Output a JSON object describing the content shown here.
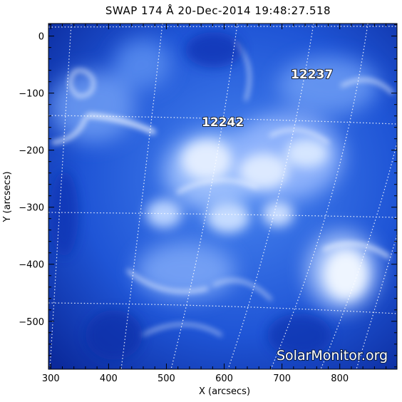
{
  "title": "SWAP 174 Å 20-Dec-2014 19:48:27.518",
  "x_axis": {
    "label": "X (arcsecs)",
    "ticks": [
      "300",
      "400",
      "500",
      "600",
      "700",
      "800"
    ],
    "tick_values": [
      300,
      400,
      500,
      600,
      700,
      800
    ]
  },
  "y_axis": {
    "label": "Y (arcsecs)",
    "ticks": [
      "0",
      "−100",
      "−200",
      "−300",
      "−400",
      "−500"
    ],
    "tick_values": [
      0,
      -100,
      -200,
      -300,
      -400,
      -500
    ]
  },
  "regions": [
    {
      "label": "12237",
      "x": 751,
      "y": -70
    },
    {
      "label": "12242",
      "x": 598,
      "y": -155
    }
  ],
  "watermark": "SolarMonitor.org",
  "colors": {
    "background_dark": "#0d2fa8",
    "mid": "#2f6ee6",
    "highlight": "#ffffff",
    "grid": "#ffffff"
  }
}
